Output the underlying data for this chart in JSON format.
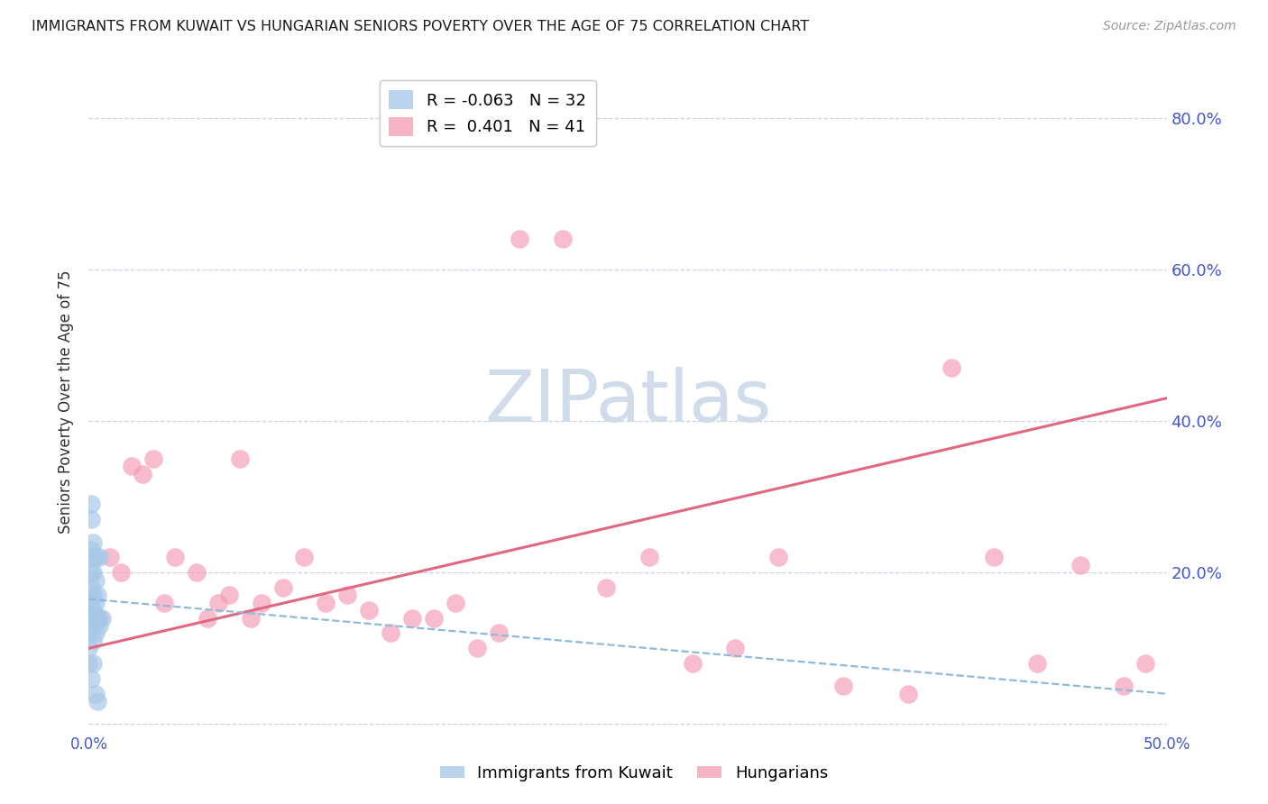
{
  "title": "IMMIGRANTS FROM KUWAIT VS HUNGARIAN SENIORS POVERTY OVER THE AGE OF 75 CORRELATION CHART",
  "source": "Source: ZipAtlas.com",
  "ylabel": "Seniors Poverty Over the Age of 75",
  "legend_label1": "Immigrants from Kuwait",
  "legend_label2": "Hungarians",
  "R1": -0.063,
  "N1": 32,
  "R2": 0.401,
  "N2": 41,
  "xlim": [
    0.0,
    0.5
  ],
  "ylim": [
    -0.01,
    0.86
  ],
  "color_blue": "#a8c8e8",
  "color_pink": "#f4a0b8",
  "color_blue_line": "#90b8d8",
  "color_pink_line": "#e06880",
  "background": "#ffffff",
  "watermark": "ZIPatlas",
  "watermark_color": "#d0dcea",
  "grid_color": "#c8d4e4",
  "title_color": "#1a1a1a",
  "axis_tick_color": "#4455cc",
  "ylabel_color": "#333333",
  "source_color": "#999999",
  "kuwait_x": [
    0.0,
    0.0,
    0.0,
    0.0,
    0.0,
    0.001,
    0.001,
    0.001,
    0.001,
    0.001,
    0.001,
    0.001,
    0.002,
    0.002,
    0.002,
    0.002,
    0.002,
    0.002,
    0.002,
    0.002,
    0.003,
    0.003,
    0.003,
    0.003,
    0.003,
    0.003,
    0.004,
    0.004,
    0.004,
    0.005,
    0.005,
    0.006
  ],
  "kuwait_y": [
    0.16,
    0.14,
    0.12,
    0.1,
    0.08,
    0.29,
    0.27,
    0.23,
    0.2,
    0.18,
    0.15,
    0.06,
    0.24,
    0.22,
    0.2,
    0.17,
    0.15,
    0.13,
    0.11,
    0.08,
    0.22,
    0.19,
    0.16,
    0.14,
    0.12,
    0.04,
    0.17,
    0.14,
    0.03,
    0.22,
    0.13,
    0.14
  ],
  "hungarian_x": [
    0.005,
    0.01,
    0.015,
    0.02,
    0.025,
    0.03,
    0.035,
    0.04,
    0.05,
    0.055,
    0.06,
    0.065,
    0.07,
    0.075,
    0.08,
    0.09,
    0.1,
    0.11,
    0.12,
    0.13,
    0.14,
    0.15,
    0.16,
    0.17,
    0.18,
    0.19,
    0.2,
    0.22,
    0.24,
    0.26,
    0.28,
    0.3,
    0.32,
    0.35,
    0.38,
    0.4,
    0.42,
    0.44,
    0.46,
    0.48,
    0.49
  ],
  "hungarian_y": [
    0.14,
    0.22,
    0.2,
    0.34,
    0.33,
    0.35,
    0.16,
    0.22,
    0.2,
    0.14,
    0.16,
    0.17,
    0.35,
    0.14,
    0.16,
    0.18,
    0.22,
    0.16,
    0.17,
    0.15,
    0.12,
    0.14,
    0.14,
    0.16,
    0.1,
    0.12,
    0.64,
    0.64,
    0.18,
    0.22,
    0.08,
    0.1,
    0.22,
    0.05,
    0.04,
    0.47,
    0.22,
    0.08,
    0.21,
    0.05,
    0.08
  ],
  "pink_line_x0": 0.0,
  "pink_line_y0": 0.1,
  "pink_line_x1": 0.5,
  "pink_line_y1": 0.43,
  "blue_line_x0": 0.0,
  "blue_line_y0": 0.165,
  "blue_line_x1": 0.5,
  "blue_line_y1": 0.04
}
